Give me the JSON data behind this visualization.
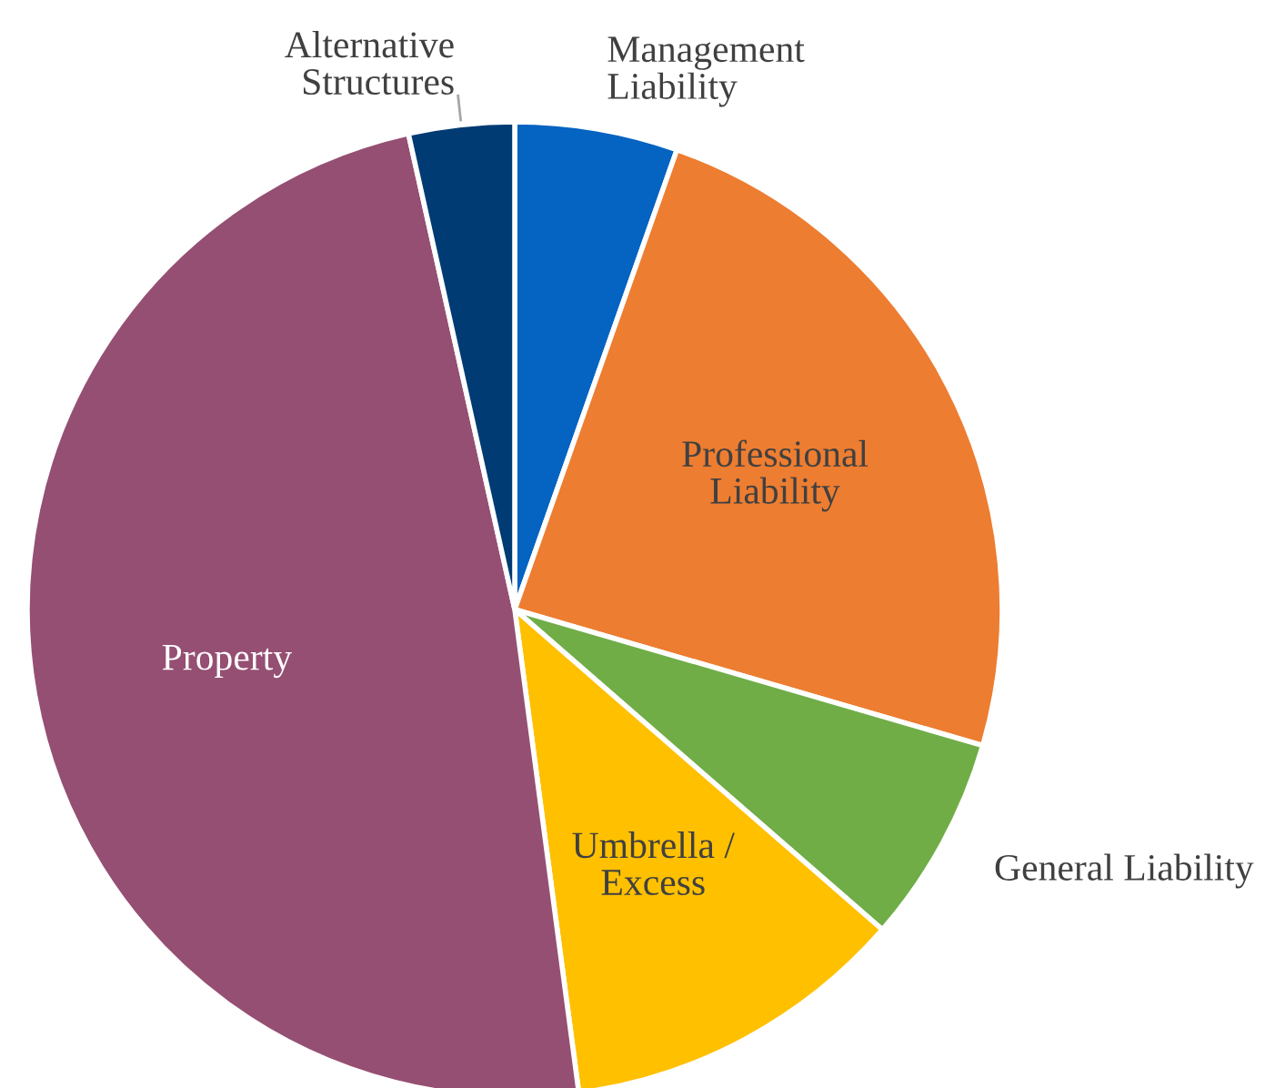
{
  "chart_data": {
    "type": "pie",
    "categories": [
      "Management\nLiability",
      "Professional\nLiability",
      "General Liability",
      "Umbrella /\nExcess",
      "Property",
      "Alternative\nStructures"
    ],
    "values": [
      5.4,
      24.1,
      6.9,
      11.5,
      48.6,
      3.5
    ],
    "colors": [
      "#0563c1",
      "#ed7d31",
      "#70ad47",
      "#ffc000",
      "#954f72",
      "#003b73"
    ],
    "legend": false
  }
}
